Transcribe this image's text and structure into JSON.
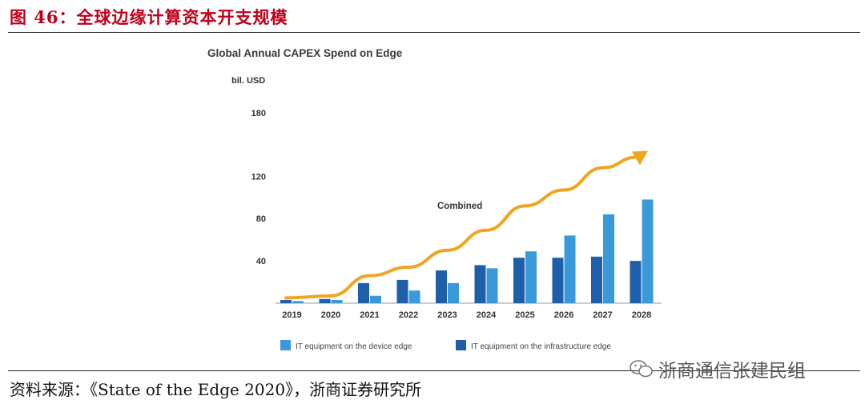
{
  "figure": {
    "title": "图 46：全球边缘计算资本开支规模",
    "source": "资料来源：《State of the Edge 2020》，浙商证券研究所",
    "watermark": "浙商通信张建民组",
    "title_color": "#c0001a"
  },
  "chart_data": {
    "type": "bar",
    "title": "Global Annual CAPEX Spend on Edge",
    "ylabel": "bil. USD",
    "xlabel": "",
    "ylim": [
      0,
      180
    ],
    "yticks": [
      40,
      80,
      120,
      180
    ],
    "categories": [
      "2019",
      "2020",
      "2021",
      "2022",
      "2023",
      "2024",
      "2025",
      "2026",
      "2027",
      "2028"
    ],
    "series": [
      {
        "name": "IT equipment on the infrastructure edge",
        "color": "#1f5ea8",
        "values": [
          3,
          4,
          19,
          22,
          31,
          36,
          43,
          43,
          44,
          40
        ]
      },
      {
        "name": "IT equipment on the device edge",
        "color": "#3a9ad9",
        "values": [
          2,
          3,
          7,
          12,
          19,
          33,
          49,
          64,
          84,
          98
        ]
      }
    ],
    "combined": {
      "name": "Combined",
      "color": "#f0a520",
      "values": [
        5,
        7,
        26,
        34,
        50,
        69,
        92,
        107,
        128,
        138
      ]
    },
    "legend": [
      {
        "label": "IT equipment on the device edge",
        "color": "#3a9ad9"
      },
      {
        "label": "IT equipment on the infrastructure edge",
        "color": "#1f5ea8"
      }
    ],
    "grid": false
  }
}
